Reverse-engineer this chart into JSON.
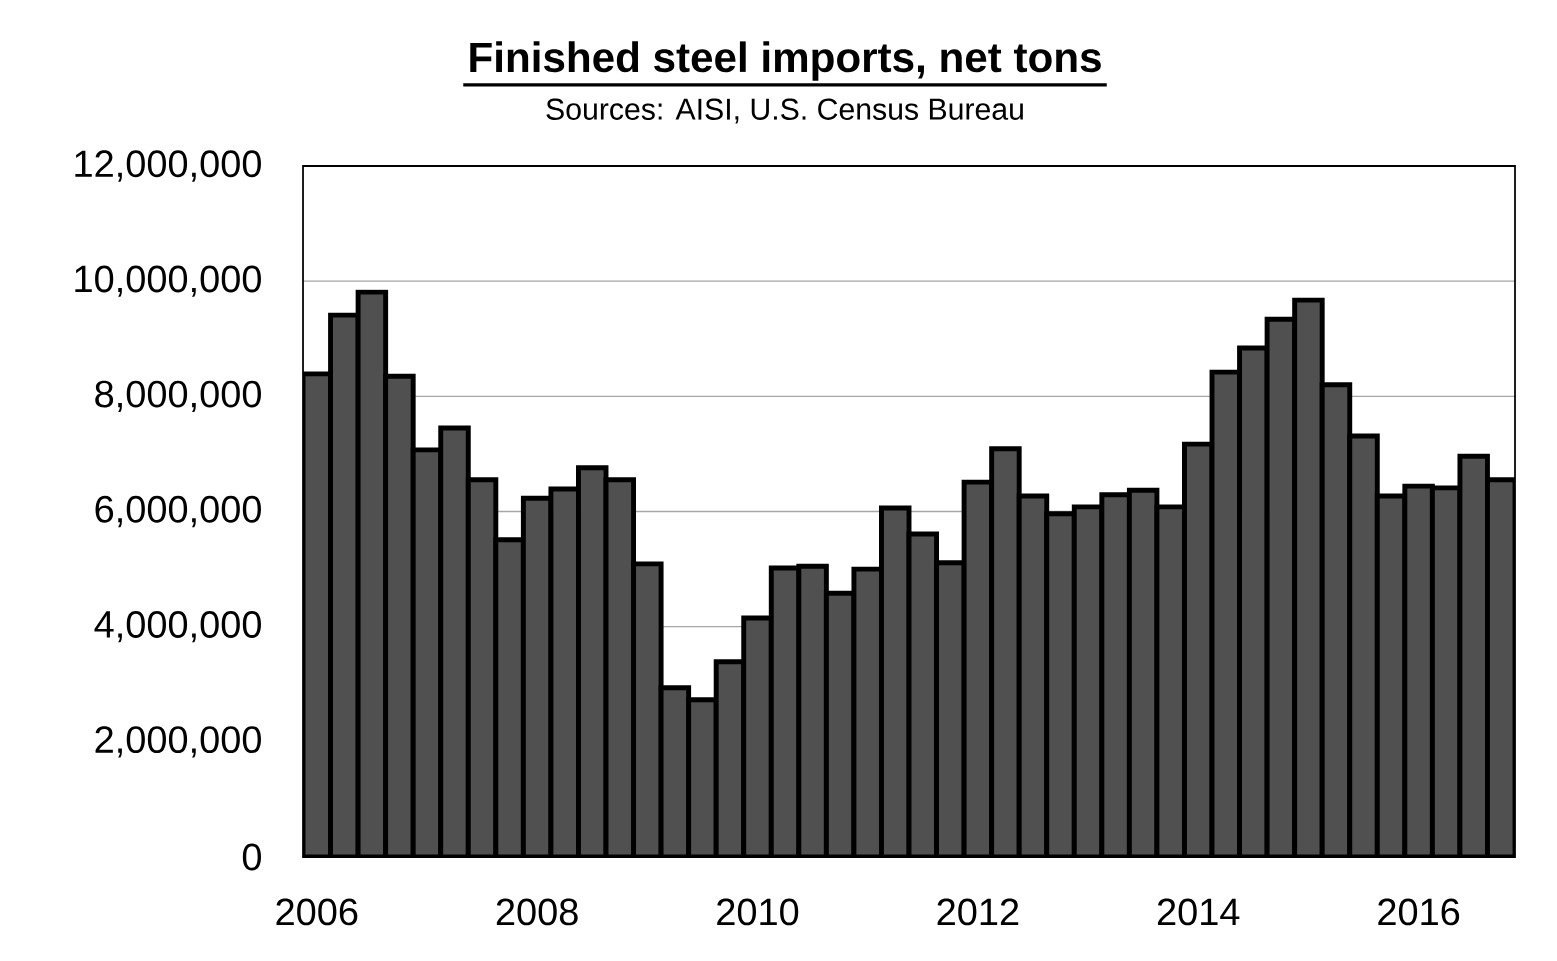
{
  "chart_data": {
    "type": "bar",
    "title": "Finished steel imports, net tons",
    "subtitle": "Sources: AISI, U.S. Census Bureau",
    "categories": [
      "2006",
      null,
      null,
      null,
      null,
      null,
      null,
      null,
      "2008",
      null,
      null,
      null,
      null,
      null,
      null,
      null,
      "2010",
      null,
      null,
      null,
      null,
      null,
      null,
      null,
      "2012",
      null,
      null,
      null,
      null,
      null,
      null,
      null,
      "2014",
      null,
      null,
      null,
      null,
      null,
      null,
      null,
      "2016",
      null,
      null,
      null
    ],
    "values": [
      8390000,
      9410000,
      9810000,
      8350000,
      7070000,
      7450000,
      6550000,
      5510000,
      6230000,
      6390000,
      6760000,
      6550000,
      5090000,
      2940000,
      2730000,
      3390000,
      4150000,
      5020000,
      5050000,
      4580000,
      5000000,
      6060000,
      5610000,
      5110000,
      6510000,
      7090000,
      6270000,
      5960000,
      6080000,
      6290000,
      6370000,
      6080000,
      7170000,
      8420000,
      8840000,
      9340000,
      9670000,
      8200000,
      7310000,
      6270000,
      6440000,
      6410000,
      6960000,
      6550000
    ],
    "color": "#505050",
    "ylim": [
      0,
      12000000
    ],
    "yticks": [
      0,
      {
        "value": 2000000,
        "label": "2,000,000"
      },
      {
        "value": 4000000,
        "label": "4,000,000"
      },
      {
        "value": 6000000,
        "label": "6,000,000"
      },
      {
        "value": 8000000,
        "label": "8,000,000"
      },
      {
        "value": 10000000,
        "label": "10,000,000"
      },
      {
        "value": 12000000,
        "label": "12,000,000"
      }
    ],
    "grid": "y"
  }
}
